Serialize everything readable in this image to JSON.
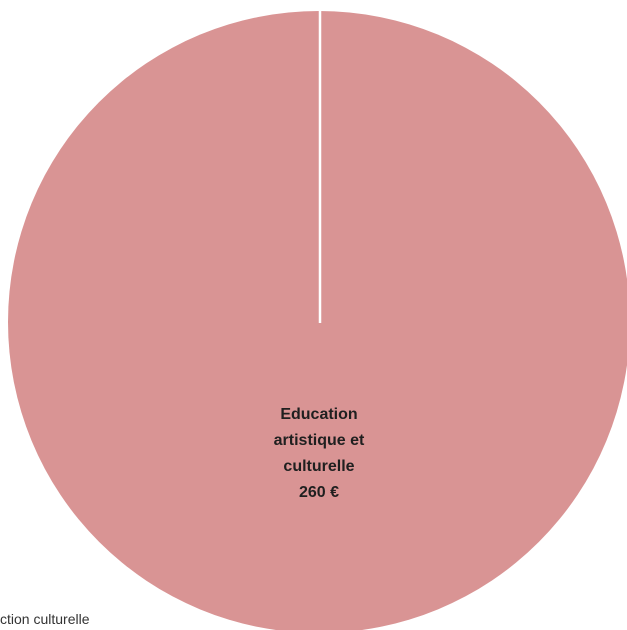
{
  "chart_data": {
    "type": "pie",
    "slices": [
      {
        "label_lines": [
          "Education",
          "artistique et",
          "culturelle",
          "260 €"
        ],
        "value": 260,
        "color": "#d99494"
      }
    ],
    "legend_fragment": "ction culturelle"
  }
}
